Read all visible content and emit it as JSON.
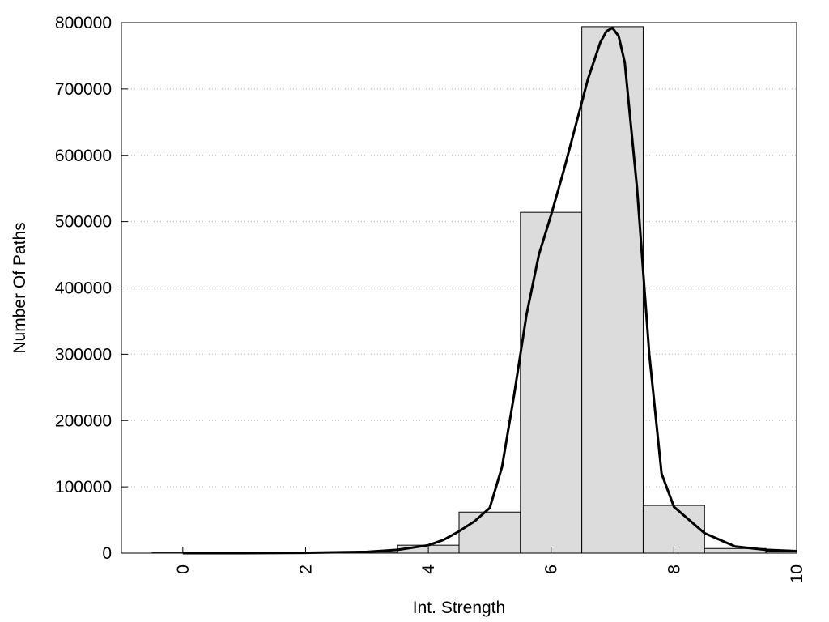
{
  "chart_data": {
    "type": "bar",
    "title": "",
    "xlabel": "Int. Strength",
    "ylabel": "Number Of Paths",
    "xlim": [
      -1,
      10
    ],
    "ylim": [
      0,
      800000
    ],
    "x_ticks": [
      0,
      2,
      4,
      6,
      8,
      10
    ],
    "x_tick_labels": [
      "0",
      "2",
      "4",
      "6",
      "8",
      "10"
    ],
    "y_ticks": [
      0,
      100000,
      200000,
      300000,
      400000,
      500000,
      600000,
      700000,
      800000
    ],
    "y_tick_labels": [
      "0",
      "100000",
      "200000",
      "300000",
      "400000",
      "500000",
      "600000",
      "700000",
      "800000"
    ],
    "grid": "horizontal dotted",
    "legend": "none",
    "bar_width": 1,
    "categories": [
      0,
      1,
      2,
      3,
      4,
      5,
      6,
      7,
      8,
      9,
      10
    ],
    "series": [
      {
        "type": "bar",
        "color": "#dcdcdc",
        "values": [
          500,
          500,
          800,
          1500,
          12000,
          62000,
          514000,
          794000,
          72000,
          7000,
          3000
        ]
      },
      {
        "type": "line",
        "color": "#000000",
        "x": [
          0,
          1,
          2,
          3,
          3.5,
          4,
          4.25,
          4.5,
          4.75,
          5,
          5.2,
          5.4,
          5.6,
          5.8,
          6,
          6.2,
          6.4,
          6.6,
          6.8,
          6.9,
          7,
          7.1,
          7.2,
          7.4,
          7.6,
          7.8,
          8,
          8.5,
          9,
          9.5,
          10
        ],
        "values": [
          0,
          0,
          500,
          2000,
          5000,
          12000,
          20000,
          33000,
          48000,
          68000,
          130000,
          240000,
          360000,
          450000,
          510000,
          575000,
          645000,
          715000,
          770000,
          787000,
          792000,
          780000,
          740000,
          550000,
          300000,
          120000,
          70000,
          30000,
          10000,
          5000,
          3000
        ]
      }
    ]
  }
}
